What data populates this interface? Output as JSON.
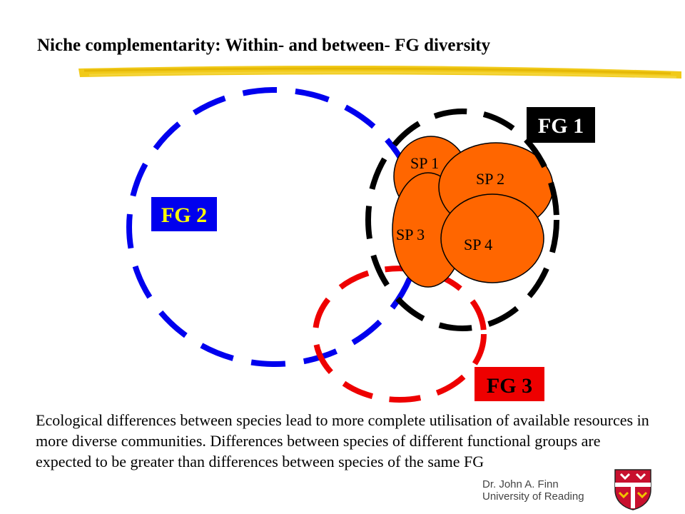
{
  "slide": {
    "title": "Niche complementarity: Within- and between- FG diversity",
    "body_text": "Ecological differences between species lead to more complete utilisation of available resources in more diverse communities. Differences between species of different functional groups are expected to be greater than differences between species of the same FG",
    "credit": {
      "author": "Dr. John A. Finn",
      "institution": "University of Reading"
    },
    "logo": "university-crest-icon"
  },
  "diagram": {
    "groups": [
      {
        "label": "FG 1",
        "ring_color": "#000000",
        "label_bg": "#000000",
        "label_color": "#ffffff"
      },
      {
        "label": "FG 2",
        "ring_color": "#0000ee",
        "label_bg": "#0000ee",
        "label_color": "#ffff00"
      },
      {
        "label": "FG 3",
        "ring_color": "#ee0000",
        "label_bg": "#ee0000",
        "label_color": "#000000"
      }
    ],
    "species": [
      "SP 1",
      "SP 2",
      "SP 3",
      "SP 4"
    ],
    "species_color": "#ff6600",
    "highlight_color": "#f0c400"
  }
}
